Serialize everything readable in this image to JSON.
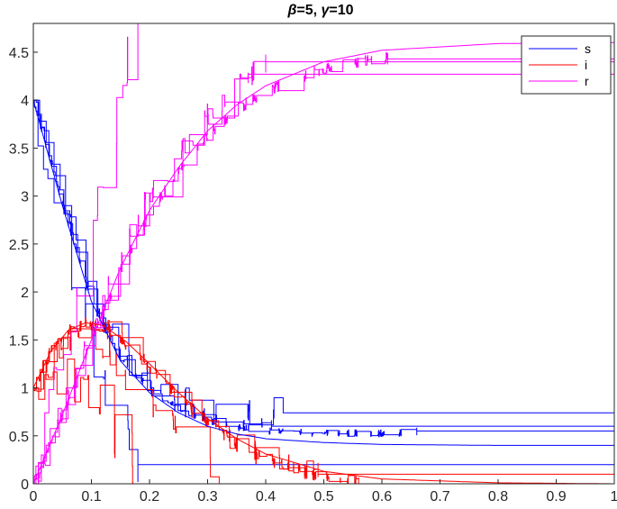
{
  "chart_data": {
    "type": "line",
    "title": "β=5, γ=10",
    "title_parts": {
      "beta_symbol": "β",
      "beta_value": "=5, ",
      "gamma_symbol": "γ",
      "gamma_value": "=10"
    },
    "xlim": [
      0,
      1
    ],
    "ylim": [
      0,
      4.8
    ],
    "xticks": [
      0,
      0.1,
      0.2,
      0.3,
      0.4,
      0.5,
      0.6,
      0.7,
      0.8,
      0.9,
      1
    ],
    "xtick_labels": [
      "0",
      "0.1",
      "0.2",
      "0.3",
      "0.4",
      "0.5",
      "0.6",
      "0.7",
      "0.8",
      "0.9",
      "1"
    ],
    "yticks": [
      0,
      0.5,
      1,
      1.5,
      2,
      2.5,
      3,
      3.5,
      4,
      4.5
    ],
    "ytick_labels": [
      "0",
      "0.5",
      "1",
      "1.5",
      "2",
      "2.5",
      "3",
      "3.5",
      "4",
      "4.5"
    ],
    "grid": false,
    "legend": {
      "position": "top-right",
      "entries": [
        {
          "label": "s",
          "color": "#0000ff"
        },
        {
          "label": "i",
          "color": "#ff0000"
        },
        {
          "label": "r",
          "color": "#ff00ff"
        }
      ]
    },
    "series": [
      {
        "name": "s",
        "color": "#0000ff",
        "kind": "deterministic",
        "x": [
          0,
          0.05,
          0.1,
          0.15,
          0.2,
          0.25,
          0.3,
          0.35,
          0.4,
          0.5,
          0.6,
          0.8,
          1.0
        ],
        "y": [
          4.0,
          2.9,
          1.9,
          1.28,
          0.95,
          0.74,
          0.6,
          0.52,
          0.47,
          0.43,
          0.41,
          0.4,
          0.4
        ]
      },
      {
        "name": "i",
        "color": "#ff0000",
        "kind": "deterministic",
        "x": [
          0,
          0.03,
          0.06,
          0.09,
          0.12,
          0.16,
          0.2,
          0.25,
          0.3,
          0.35,
          0.4,
          0.5,
          0.6,
          0.8,
          1.0
        ],
        "y": [
          1.0,
          1.38,
          1.6,
          1.68,
          1.65,
          1.48,
          1.25,
          0.95,
          0.68,
          0.47,
          0.31,
          0.13,
          0.05,
          0.01,
          0.0
        ]
      },
      {
        "name": "r",
        "color": "#ff00ff",
        "kind": "deterministic",
        "x": [
          0,
          0.05,
          0.1,
          0.15,
          0.2,
          0.25,
          0.3,
          0.35,
          0.4,
          0.5,
          0.6,
          0.8,
          1.0
        ],
        "y": [
          0.0,
          0.72,
          1.5,
          2.25,
          2.85,
          3.3,
          3.68,
          3.95,
          4.15,
          4.4,
          4.52,
          4.59,
          4.6
        ]
      },
      {
        "name": "s",
        "color": "#0000ff",
        "kind": "simulation",
        "seed": 11,
        "n": 40,
        "stepsize": 0.06,
        "x_end": 0.43,
        "final": 0.74
      },
      {
        "name": "s",
        "color": "#0000ff",
        "kind": "simulation",
        "seed": 23,
        "n": 300,
        "stepsize": 0.012,
        "x_end": 0.66,
        "final": 0.55
      },
      {
        "name": "s",
        "color": "#0000ff",
        "kind": "simulation",
        "seed": 37,
        "n": 80,
        "stepsize": 0.03,
        "x_end": 0.41,
        "final": 0.6
      },
      {
        "name": "s",
        "color": "#0000ff",
        "kind": "simulation",
        "seed": 51,
        "n": 20,
        "stepsize": 0.1,
        "x_end": 0.18,
        "final": 0.2
      },
      {
        "name": "i",
        "color": "#ff0000",
        "kind": "simulation",
        "seed": 63,
        "n": 300,
        "stepsize": 0.02,
        "x_end": 0.56,
        "final": 0.0
      },
      {
        "name": "i",
        "color": "#ff0000",
        "kind": "simulation",
        "seed": 77,
        "n": 80,
        "stepsize": 0.04,
        "x_end": 0.49,
        "final": 0.1
      },
      {
        "name": "i",
        "color": "#ff0000",
        "kind": "simulation",
        "seed": 89,
        "n": 40,
        "stepsize": 0.06,
        "x_end": 0.32,
        "final": 0.0
      },
      {
        "name": "i",
        "color": "#ff0000",
        "kind": "simulation",
        "seed": 97,
        "n": 20,
        "stepsize": 0.1,
        "x_end": 0.18,
        "final": 0.0
      },
      {
        "name": "r",
        "color": "#ff00ff",
        "kind": "simulation",
        "seed": 103,
        "n": 300,
        "stepsize": 0.02,
        "x_end": 0.61,
        "final": 4.43
      },
      {
        "name": "r",
        "color": "#ff00ff",
        "kind": "simulation",
        "seed": 117,
        "n": 40,
        "stepsize": 0.06,
        "x_end": 0.37,
        "final": 4.27
      },
      {
        "name": "r",
        "color": "#ff00ff",
        "kind": "simulation",
        "seed": 131,
        "n": 80,
        "stepsize": 0.04,
        "x_end": 0.4,
        "final": 4.4
      },
      {
        "name": "r",
        "color": "#ff00ff",
        "kind": "simulation",
        "seed": 149,
        "n": 20,
        "stepsize": 0.1,
        "x_end": 0.18,
        "final": 4.8
      }
    ]
  }
}
